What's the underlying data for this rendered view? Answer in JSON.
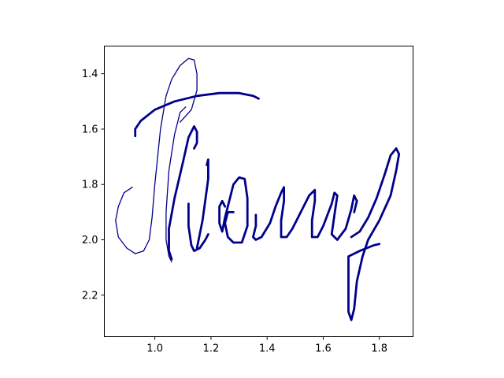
{
  "chart_data": {
    "type": "line",
    "title": "",
    "xlabel": "",
    "ylabel": "",
    "xlim": [
      0.82,
      1.92
    ],
    "ylim": [
      2.35,
      1.3
    ],
    "y_inverted": true,
    "grid": false,
    "legend": "none",
    "color": "#00008b",
    "xticks": [
      1.0,
      1.2,
      1.4,
      1.6,
      1.8
    ],
    "xtick_labels": [
      "1.0",
      "1.2",
      "1.4",
      "1.6",
      "1.8"
    ],
    "yticks": [
      1.4,
      1.6,
      1.8,
      2.0,
      2.2
    ],
    "ytick_labels": [
      "1.4",
      "1.6",
      "1.8",
      "2.0",
      "2.2"
    ],
    "series": [
      {
        "weight": "thin",
        "points": [
          [
            0.92,
            1.81
          ],
          [
            0.89,
            1.83
          ],
          [
            0.87,
            1.88
          ],
          [
            0.86,
            1.93
          ],
          [
            0.87,
            1.99
          ],
          [
            0.9,
            2.03
          ],
          [
            0.93,
            2.05
          ],
          [
            0.96,
            2.04
          ],
          [
            0.98,
            2.0
          ],
          [
            0.99,
            1.92
          ],
          [
            1.0,
            1.8
          ],
          [
            1.02,
            1.6
          ],
          [
            1.04,
            1.48
          ],
          [
            1.06,
            1.42
          ],
          [
            1.09,
            1.37
          ],
          [
            1.12,
            1.345
          ],
          [
            1.14,
            1.35
          ],
          [
            1.15,
            1.4
          ],
          [
            1.15,
            1.46
          ],
          [
            1.13,
            1.53
          ],
          [
            1.09,
            1.575
          ]
        ]
      },
      {
        "weight": "thin",
        "points": [
          [
            1.06,
            2.08
          ],
          [
            1.05,
            2.06
          ],
          [
            1.04,
            2.0
          ],
          [
            1.04,
            1.9
          ],
          [
            1.05,
            1.75
          ],
          [
            1.07,
            1.62
          ],
          [
            1.09,
            1.54
          ],
          [
            1.11,
            1.52
          ]
        ]
      },
      {
        "weight": "thick",
        "points": [
          [
            0.93,
            1.625
          ],
          [
            0.93,
            1.6
          ],
          [
            0.95,
            1.57
          ],
          [
            1.0,
            1.53
          ],
          [
            1.07,
            1.5
          ],
          [
            1.15,
            1.48
          ],
          [
            1.23,
            1.47
          ],
          [
            1.3,
            1.47
          ],
          [
            1.35,
            1.48
          ],
          [
            1.37,
            1.49
          ]
        ]
      },
      {
        "weight": "thick",
        "points": [
          [
            1.06,
            2.07
          ],
          [
            1.05,
            2.04
          ],
          [
            1.05,
            1.96
          ],
          [
            1.07,
            1.85
          ],
          [
            1.1,
            1.72
          ],
          [
            1.12,
            1.63
          ],
          [
            1.14,
            1.59
          ],
          [
            1.15,
            1.61
          ],
          [
            1.15,
            1.65
          ],
          [
            1.14,
            1.67
          ]
        ]
      },
      {
        "weight": "thick",
        "points": [
          [
            1.12,
            1.87
          ],
          [
            1.12,
            1.95
          ],
          [
            1.13,
            2.02
          ],
          [
            1.14,
            2.04
          ],
          [
            1.16,
            2.03
          ],
          [
            1.18,
            2.0
          ],
          [
            1.19,
            1.98
          ]
        ]
      },
      {
        "weight": "thick",
        "points": [
          [
            1.15,
            2.03
          ],
          [
            1.17,
            1.93
          ],
          [
            1.19,
            1.78
          ],
          [
            1.19,
            1.71
          ],
          [
            1.185,
            1.73
          ]
        ]
      },
      {
        "weight": "thick",
        "points": [
          [
            1.25,
            1.88
          ],
          [
            1.24,
            1.86
          ],
          [
            1.23,
            1.88
          ],
          [
            1.23,
            1.94
          ],
          [
            1.24,
            1.97
          ],
          [
            1.25,
            1.92
          ],
          [
            1.26,
            1.88
          ],
          [
            1.28,
            1.8
          ],
          [
            1.3,
            1.775
          ],
          [
            1.32,
            1.78
          ],
          [
            1.33,
            1.85
          ],
          [
            1.33,
            1.95
          ],
          [
            1.31,
            2.01
          ],
          [
            1.28,
            2.01
          ],
          [
            1.26,
            1.99
          ],
          [
            1.25,
            1.94
          ],
          [
            1.26,
            1.9
          ],
          [
            1.28,
            1.9
          ]
        ]
      },
      {
        "weight": "thick",
        "points": [
          [
            1.36,
            1.91
          ],
          [
            1.36,
            1.95
          ],
          [
            1.35,
            1.99
          ],
          [
            1.36,
            2.0
          ],
          [
            1.38,
            1.99
          ],
          [
            1.41,
            1.94
          ],
          [
            1.43,
            1.88
          ],
          [
            1.45,
            1.83
          ],
          [
            1.46,
            1.81
          ],
          [
            1.46,
            1.86
          ],
          [
            1.45,
            1.93
          ],
          [
            1.45,
            1.99
          ],
          [
            1.47,
            1.99
          ],
          [
            1.49,
            1.96
          ],
          [
            1.53,
            1.88
          ],
          [
            1.55,
            1.84
          ],
          [
            1.57,
            1.82
          ],
          [
            1.57,
            1.86
          ],
          [
            1.56,
            1.93
          ],
          [
            1.56,
            1.99
          ],
          [
            1.58,
            1.99
          ],
          [
            1.6,
            1.95
          ],
          [
            1.63,
            1.87
          ],
          [
            1.64,
            1.83
          ],
          [
            1.65,
            1.84
          ],
          [
            1.64,
            1.91
          ],
          [
            1.63,
            1.98
          ],
          [
            1.65,
            2.0
          ],
          [
            1.68,
            1.96
          ],
          [
            1.7,
            1.89
          ],
          [
            1.71,
            1.84
          ],
          [
            1.72,
            1.86
          ],
          [
            1.71,
            1.9
          ]
        ]
      },
      {
        "weight": "thick",
        "points": [
          [
            1.7,
            1.99
          ],
          [
            1.73,
            1.97
          ],
          [
            1.76,
            1.92
          ],
          [
            1.79,
            1.85
          ],
          [
            1.82,
            1.76
          ],
          [
            1.84,
            1.695
          ],
          [
            1.86,
            1.67
          ],
          [
            1.87,
            1.69
          ],
          [
            1.86,
            1.75
          ],
          [
            1.84,
            1.84
          ],
          [
            1.8,
            1.93
          ],
          [
            1.76,
            2.0
          ],
          [
            1.74,
            2.06
          ],
          [
            1.72,
            2.15
          ],
          [
            1.71,
            2.25
          ],
          [
            1.7,
            2.29
          ],
          [
            1.69,
            2.26
          ],
          [
            1.69,
            2.12
          ],
          [
            1.69,
            2.06
          ],
          [
            1.73,
            2.04
          ],
          [
            1.78,
            2.02
          ],
          [
            1.8,
            2.015
          ]
        ]
      }
    ]
  }
}
